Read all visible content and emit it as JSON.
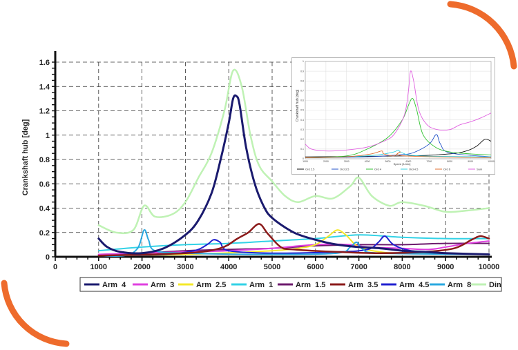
{
  "colors": {
    "accent": "#ee6b2c",
    "inset_border": "#b8b8b8"
  },
  "chart_data": [
    {
      "type": "line",
      "title": "",
      "xlabel": "",
      "ylabel": "Crankshaft hub [deg]",
      "xlim": [
        0,
        10000
      ],
      "ylim": [
        0,
        1.6
      ],
      "grid": true,
      "legend_position": "bottom",
      "x_ticks": [
        "0",
        "1000",
        "2000",
        "3000",
        "4000",
        "5000",
        "6000",
        "7000",
        "8000",
        "9000",
        "10000"
      ],
      "y_ticks": [
        "0",
        "0.2",
        "0.4",
        "0.6",
        "0.8",
        "1",
        "1.2",
        "1.4",
        "1.6"
      ],
      "series": [
        {
          "name": "Arm  4",
          "color": "#1a1a6e",
          "width": 3,
          "points": [
            [
              1000,
              0.15
            ],
            [
              1200,
              0.08
            ],
            [
              1500,
              0.04
            ],
            [
              2000,
              0.03
            ],
            [
              2500,
              0.07
            ],
            [
              3000,
              0.18
            ],
            [
              3300,
              0.3
            ],
            [
              3600,
              0.52
            ],
            [
              3800,
              0.78
            ],
            [
              4000,
              1.1
            ],
            [
              4100,
              1.3
            ],
            [
              4180,
              1.32
            ],
            [
              4250,
              1.25
            ],
            [
              4400,
              0.9
            ],
            [
              4600,
              0.6
            ],
            [
              4800,
              0.42
            ],
            [
              5000,
              0.32
            ],
            [
              5500,
              0.2
            ],
            [
              6000,
              0.14
            ],
            [
              6500,
              0.1
            ],
            [
              7000,
              0.08
            ],
            [
              7500,
              0.07
            ],
            [
              8000,
              0.05
            ],
            [
              8500,
              0.04
            ],
            [
              9000,
              0.03
            ],
            [
              10000,
              0.02
            ]
          ]
        },
        {
          "name": "Arm  3",
          "color": "#e040e0",
          "width": 2,
          "points": [
            [
              1000,
              0.02
            ],
            [
              2000,
              0.03
            ],
            [
              3000,
              0.04
            ],
            [
              4000,
              0.05
            ],
            [
              5000,
              0.07
            ],
            [
              6000,
              0.1
            ],
            [
              6800,
              0.1
            ],
            [
              7200,
              0.08
            ],
            [
              8000,
              0.07
            ],
            [
              8600,
              0.06
            ],
            [
              9000,
              0.08
            ],
            [
              9500,
              0.11
            ],
            [
              10000,
              0.13
            ]
          ]
        },
        {
          "name": "Arm  2.5",
          "color": "#f5e82a",
          "width": 2,
          "points": [
            [
              1000,
              0.01
            ],
            [
              3000,
              0.02
            ],
            [
              5000,
              0.05
            ],
            [
              5600,
              0.07
            ],
            [
              6000,
              0.1
            ],
            [
              6300,
              0.17
            ],
            [
              6500,
              0.22
            ],
            [
              6700,
              0.18
            ],
            [
              7000,
              0.08
            ],
            [
              7500,
              0.04
            ],
            [
              8000,
              0.03
            ],
            [
              10000,
              0.02
            ]
          ]
        },
        {
          "name": "Arm  1",
          "color": "#32d2e6",
          "width": 2,
          "points": [
            [
              1000,
              0.05
            ],
            [
              2000,
              0.08
            ],
            [
              3000,
              0.1
            ],
            [
              4000,
              0.11
            ],
            [
              5000,
              0.13
            ],
            [
              6000,
              0.15
            ],
            [
              7000,
              0.18
            ],
            [
              8000,
              0.16
            ],
            [
              9000,
              0.15
            ],
            [
              10000,
              0.15
            ]
          ]
        },
        {
          "name": "Arm  1.5",
          "color": "#6d1a6d",
          "width": 2,
          "points": [
            [
              1000,
              0.02
            ],
            [
              2000,
              0.03
            ],
            [
              3000,
              0.05
            ],
            [
              4000,
              0.06
            ],
            [
              5000,
              0.07
            ],
            [
              6000,
              0.09
            ],
            [
              7000,
              0.1
            ],
            [
              8000,
              0.1
            ],
            [
              9000,
              0.11
            ],
            [
              10000,
              0.11
            ]
          ]
        },
        {
          "name": "Arm  3.5",
          "color": "#8b1a1a",
          "width": 2.5,
          "points": [
            [
              1000,
              0.01
            ],
            [
              3000,
              0.03
            ],
            [
              3800,
              0.07
            ],
            [
              4200,
              0.15
            ],
            [
              4450,
              0.2
            ],
            [
              4700,
              0.27
            ],
            [
              4900,
              0.19
            ],
            [
              5200,
              0.08
            ],
            [
              5500,
              0.06
            ],
            [
              6500,
              0.04
            ],
            [
              7500,
              0.03
            ],
            [
              8500,
              0.04
            ],
            [
              9200,
              0.07
            ],
            [
              9600,
              0.14
            ],
            [
              9800,
              0.17
            ],
            [
              10000,
              0.15
            ]
          ]
        },
        {
          "name": "Arm  4.5",
          "color": "#2020d0",
          "width": 2,
          "points": [
            [
              1000,
              0.01
            ],
            [
              2500,
              0.02
            ],
            [
              3200,
              0.05
            ],
            [
              3500,
              0.1
            ],
            [
              3650,
              0.14
            ],
            [
              3800,
              0.12
            ],
            [
              4000,
              0.05
            ],
            [
              5000,
              0.03
            ],
            [
              6500,
              0.04
            ],
            [
              7200,
              0.06
            ],
            [
              7450,
              0.12
            ],
            [
              7600,
              0.17
            ],
            [
              7800,
              0.1
            ],
            [
              8200,
              0.05
            ],
            [
              9000,
              0.03
            ],
            [
              10000,
              0.02
            ]
          ]
        },
        {
          "name": "Arm  8",
          "color": "#2aa8e0",
          "width": 2,
          "points": [
            [
              1000,
              0.01
            ],
            [
              1600,
              0.01
            ],
            [
              1900,
              0.07
            ],
            [
              2050,
              0.22
            ],
            [
              2150,
              0.14
            ],
            [
              2300,
              0.05
            ],
            [
              3000,
              0.03
            ],
            [
              5000,
              0.02
            ],
            [
              6500,
              0.03
            ],
            [
              6800,
              0.08
            ],
            [
              6950,
              0.12
            ],
            [
              7100,
              0.06
            ],
            [
              7500,
              0.03
            ],
            [
              10000,
              0.02
            ]
          ]
        },
        {
          "name": "Din",
          "color": "#bff2b4",
          "width": 2.5,
          "points": [
            [
              1000,
              0.26
            ],
            [
              1400,
              0.2
            ],
            [
              1800,
              0.22
            ],
            [
              2050,
              0.42
            ],
            [
              2300,
              0.33
            ],
            [
              2700,
              0.35
            ],
            [
              3000,
              0.45
            ],
            [
              3300,
              0.65
            ],
            [
              3600,
              0.85
            ],
            [
              3900,
              1.2
            ],
            [
              4100,
              1.53
            ],
            [
              4300,
              1.4
            ],
            [
              4500,
              1.0
            ],
            [
              4700,
              0.75
            ],
            [
              5000,
              0.62
            ],
            [
              5300,
              0.5
            ],
            [
              5600,
              0.45
            ],
            [
              6000,
              0.5
            ],
            [
              6400,
              0.48
            ],
            [
              6800,
              0.58
            ],
            [
              7000,
              0.65
            ],
            [
              7300,
              0.5
            ],
            [
              7700,
              0.42
            ],
            [
              8000,
              0.45
            ],
            [
              8500,
              0.42
            ],
            [
              9000,
              0.37
            ],
            [
              9500,
              0.38
            ],
            [
              10000,
              0.4
            ]
          ]
        }
      ]
    },
    {
      "type": "line",
      "title": "",
      "xlabel": "Speed [1/min]",
      "ylabel": "Crankshaft hub [deg]",
      "xlim": [
        1000,
        10000
      ],
      "ylim": [
        0,
        1
      ],
      "grid": true,
      "legend_position": "bottom",
      "x_ticks": [
        "1000",
        "2000",
        "3000",
        "4000",
        "5000",
        "6000",
        "7000",
        "8000",
        "9000",
        "10000"
      ],
      "y_ticks": [
        "0",
        "0.1",
        "0.2",
        "0.3",
        "0.4",
        "0.5",
        "0.6",
        "0.7",
        "0.8",
        "0.9",
        "1"
      ],
      "series": [
        {
          "name": "Ord 2.5",
          "color": "#111111",
          "points": [
            [
              1000,
              0.02
            ],
            [
              6000,
              0.03
            ],
            [
              8000,
              0.05
            ],
            [
              8800,
              0.08
            ],
            [
              9300,
              0.13
            ],
            [
              9700,
              0.2
            ],
            [
              10000,
              0.18
            ]
          ]
        },
        {
          "name": "Ord 3.5",
          "color": "#2050c8",
          "points": [
            [
              1000,
              0.01
            ],
            [
              4000,
              0.02
            ],
            [
              5500,
              0.04
            ],
            [
              6200,
              0.06
            ],
            [
              7000,
              0.15
            ],
            [
              7350,
              0.25
            ],
            [
              7550,
              0.15
            ],
            [
              8000,
              0.06
            ],
            [
              10000,
              0.02
            ]
          ]
        },
        {
          "name": "Ord 4",
          "color": "#33c233",
          "points": [
            [
              1000,
              0.01
            ],
            [
              3000,
              0.03
            ],
            [
              4000,
              0.1
            ],
            [
              5000,
              0.22
            ],
            [
              5700,
              0.4
            ],
            [
              6000,
              0.55
            ],
            [
              6200,
              0.62
            ],
            [
              6400,
              0.5
            ],
            [
              6700,
              0.25
            ],
            [
              7300,
              0.12
            ],
            [
              8000,
              0.07
            ],
            [
              9000,
              0.05
            ],
            [
              10000,
              0.04
            ]
          ]
        },
        {
          "name": "Ord 4.5",
          "color": "#30d0e0",
          "points": [
            [
              1000,
              0.01
            ],
            [
              3000,
              0.02
            ],
            [
              4500,
              0.04
            ],
            [
              5300,
              0.07
            ],
            [
              5500,
              0.09
            ],
            [
              5700,
              0.06
            ],
            [
              6500,
              0.03
            ],
            [
              10000,
              0.02
            ]
          ]
        },
        {
          "name": "Ord 6",
          "color": "#e07030",
          "points": [
            [
              1000,
              0.01
            ],
            [
              3000,
              0.02
            ],
            [
              4200,
              0.05
            ],
            [
              4700,
              0.08
            ],
            [
              4800,
              0.05
            ],
            [
              5300,
              0.03
            ],
            [
              5600,
              0.07
            ],
            [
              5800,
              0.03
            ],
            [
              10000,
              0.01
            ]
          ]
        },
        {
          "name": "Sum",
          "color": "#e060e0",
          "points": [
            [
              1000,
              0.15
            ],
            [
              1300,
              0.1
            ],
            [
              2000,
              0.08
            ],
            [
              3000,
              0.09
            ],
            [
              4000,
              0.12
            ],
            [
              4800,
              0.18
            ],
            [
              5300,
              0.25
            ],
            [
              5800,
              0.45
            ],
            [
              6000,
              0.7
            ],
            [
              6100,
              0.9
            ],
            [
              6250,
              0.8
            ],
            [
              6500,
              0.5
            ],
            [
              6900,
              0.35
            ],
            [
              7400,
              0.3
            ],
            [
              8000,
              0.3
            ],
            [
              8500,
              0.35
            ],
            [
              9000,
              0.38
            ],
            [
              9500,
              0.42
            ],
            [
              10000,
              0.47
            ]
          ]
        }
      ]
    }
  ]
}
